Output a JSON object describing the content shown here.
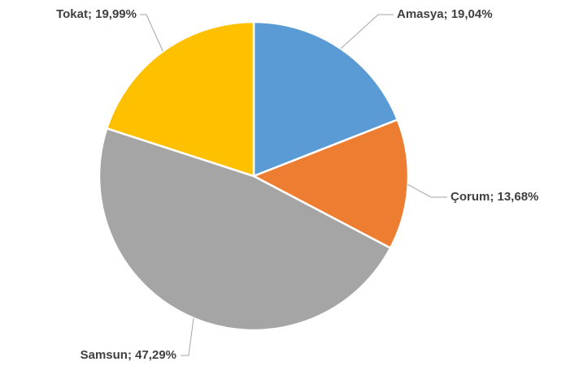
{
  "chart_data": {
    "type": "pie",
    "values": [
      19.04,
      13.68,
      47.29,
      19.99
    ],
    "value_labels": [
      "Amasya; 19,04%",
      "Çorum; 13,68%",
      "Samsun; 47,29%",
      "Tokat; 19,99%"
    ],
    "colors": [
      "#5b9bd5",
      "#ed7d31",
      "#a5a5a5",
      "#ffc000"
    ]
  }
}
